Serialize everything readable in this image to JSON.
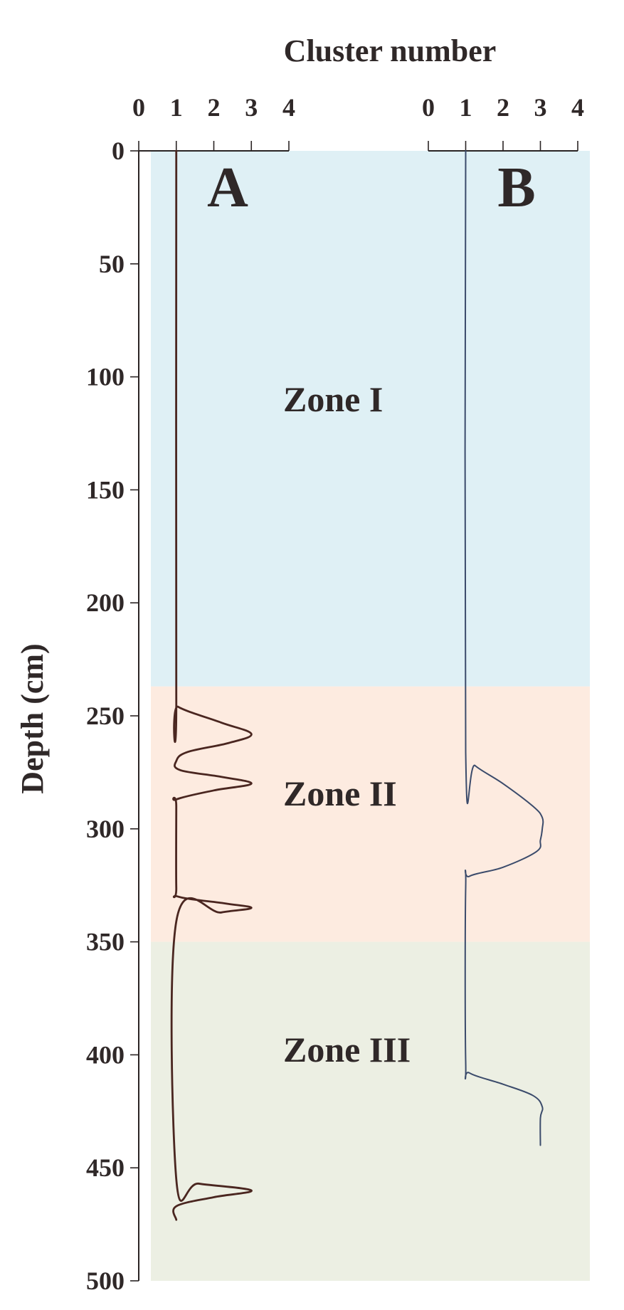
{
  "chart_data": {
    "type": "line",
    "title": "",
    "xlabel": "Cluster number",
    "ylabel": "Depth (cm)",
    "ylim": [
      0,
      500
    ],
    "y_ticks": [
      0,
      50,
      100,
      150,
      200,
      250,
      300,
      350,
      400,
      450,
      500
    ],
    "grid": false,
    "zones": [
      {
        "label": "Zone I",
        "from": 0,
        "to": 237,
        "color": "#dff0f5"
      },
      {
        "label": "Zone II",
        "from": 237,
        "to": 350,
        "color": "#fdebe0"
      },
      {
        "label": "Zone III",
        "from": 350,
        "to": 500,
        "color": "#ecefe3"
      }
    ],
    "panels": [
      {
        "label": "A",
        "xlim": [
          0,
          4
        ],
        "x_ticks": [
          0,
          1,
          2,
          3,
          4
        ],
        "line_color": "#4a2620",
        "series": [
          {
            "depth": 0,
            "cluster": 1
          },
          {
            "depth": 241,
            "cluster": 1
          },
          {
            "depth": 246,
            "cluster": 1.05
          },
          {
            "depth": 253,
            "cluster": 2.2
          },
          {
            "depth": 258,
            "cluster": 3.0
          },
          {
            "depth": 262,
            "cluster": 2.4
          },
          {
            "depth": 266,
            "cluster": 1.3
          },
          {
            "depth": 270,
            "cluster": 1.0
          },
          {
            "depth": 274,
            "cluster": 1.1
          },
          {
            "depth": 277,
            "cluster": 2.2
          },
          {
            "depth": 280,
            "cluster": 3.0
          },
          {
            "depth": 283,
            "cluster": 2.0
          },
          {
            "depth": 287,
            "cluster": 1.0
          },
          {
            "depth": 290,
            "cluster": 1.0
          },
          {
            "depth": 326,
            "cluster": 1.0
          },
          {
            "depth": 330,
            "cluster": 1.05
          },
          {
            "depth": 333,
            "cluster": 2.3
          },
          {
            "depth": 335,
            "cluster": 3.0
          },
          {
            "depth": 337,
            "cluster": 2.2
          },
          {
            "depth": 341,
            "cluster": 1.0
          },
          {
            "depth": 455,
            "cluster": 1.0
          },
          {
            "depth": 457,
            "cluster": 1.6
          },
          {
            "depth": 460,
            "cluster": 3.0
          },
          {
            "depth": 463,
            "cluster": 2.0
          },
          {
            "depth": 467,
            "cluster": 1.0
          },
          {
            "depth": 473,
            "cluster": 1.0
          }
        ]
      },
      {
        "label": "B",
        "xlim": [
          0,
          4
        ],
        "x_ticks": [
          0,
          1,
          2,
          3,
          4
        ],
        "line_color": "#3b4b6b",
        "series": [
          {
            "depth": 0,
            "cluster": 1
          },
          {
            "depth": 266,
            "cluster": 1.0
          },
          {
            "depth": 272,
            "cluster": 1.25
          },
          {
            "depth": 280,
            "cluster": 2.0
          },
          {
            "depth": 290,
            "cluster": 2.8
          },
          {
            "depth": 295,
            "cluster": 3.05
          },
          {
            "depth": 300,
            "cluster": 3.05
          },
          {
            "depth": 305,
            "cluster": 3.0
          },
          {
            "depth": 310,
            "cluster": 2.9
          },
          {
            "depth": 317,
            "cluster": 2.0
          },
          {
            "depth": 321,
            "cluster": 1.1
          },
          {
            "depth": 326,
            "cluster": 1.0
          },
          {
            "depth": 403,
            "cluster": 1.0
          },
          {
            "depth": 408,
            "cluster": 1.1
          },
          {
            "depth": 413,
            "cluster": 2.0
          },
          {
            "depth": 418,
            "cluster": 2.8
          },
          {
            "depth": 423,
            "cluster": 3.05
          },
          {
            "depth": 428,
            "cluster": 3.0
          },
          {
            "depth": 440,
            "cluster": 3.0
          }
        ]
      }
    ]
  }
}
